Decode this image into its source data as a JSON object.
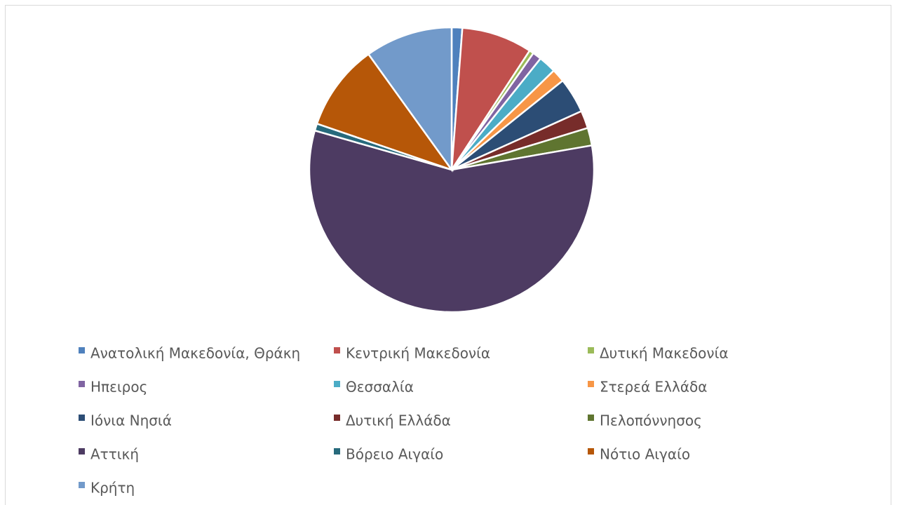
{
  "chart_data": {
    "type": "pie",
    "categories": [
      "Ανατολική Μακεδονία, Θράκη",
      "Κεντρική Μακεδονία",
      "Δυτική Μακεδονία",
      "Ηπειρος",
      "Θεσσαλία",
      "Στερεά Ελλάδα",
      "Ιόνια Νησιά",
      "Δυτική Ελλάδα",
      "Πελοπόννησος",
      "Αττική",
      "Βόρειο Αιγαίο",
      "Νότιο Αιγαίο",
      "Κρήτη"
    ],
    "values": [
      1.2,
      8,
      0.5,
      1,
      2,
      1.5,
      4,
      2,
      2,
      57,
      0.8,
      9.8,
      9.9
    ],
    "colors": [
      "#4f81bd",
      "#c0504d",
      "#9bbb59",
      "#8064a2",
      "#4bacc6",
      "#f79646",
      "#2c4d75",
      "#772c2a",
      "#5f7530",
      "#4d3b62",
      "#276a7c",
      "#b65708",
      "#729aca"
    ],
    "legend": "bottom"
  }
}
